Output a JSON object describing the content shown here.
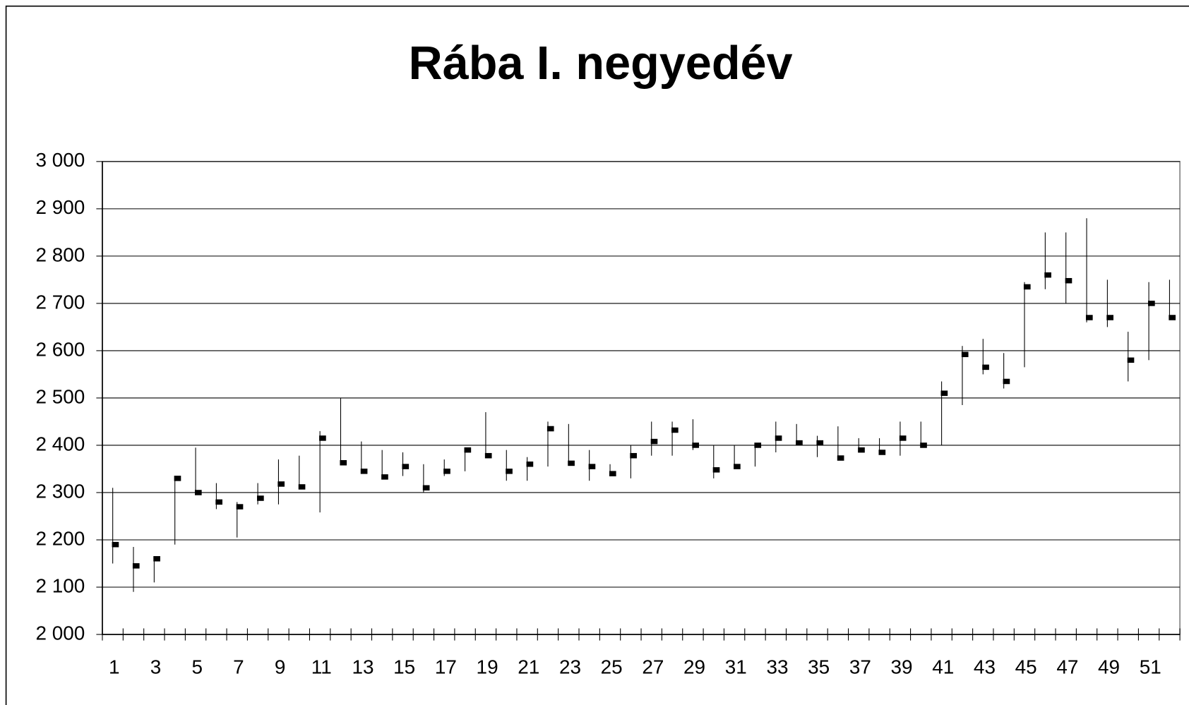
{
  "chart_data": {
    "type": "stock",
    "title": "Rába I. negyedév",
    "categories": [
      "1",
      null,
      "3",
      null,
      "5",
      null,
      "7",
      null,
      "9",
      null,
      "11",
      null,
      "13",
      null,
      "15",
      null,
      "17",
      null,
      "19",
      null,
      "21",
      null,
      "23",
      null,
      "25",
      null,
      "27",
      null,
      "29",
      null,
      "31",
      null,
      "33",
      null,
      "35",
      null,
      "37",
      null,
      "39",
      null,
      "41",
      null,
      "43",
      null,
      "45",
      null,
      "47",
      null,
      "49",
      null,
      "51",
      null
    ],
    "high": [
      2310,
      2185,
      2165,
      2335,
      2395,
      2320,
      2280,
      2320,
      2370,
      2378,
      2430,
      2500,
      2408,
      2390,
      2385,
      2360,
      2370,
      2395,
      2470,
      2390,
      2375,
      2450,
      2445,
      2390,
      2360,
      2400,
      2450,
      2450,
      2455,
      2400,
      2400,
      2405,
      2450,
      2445,
      2420,
      2440,
      2415,
      2415,
      2450,
      2450,
      2535,
      2610,
      2625,
      2595,
      2745,
      2850,
      2850,
      2880,
      2750,
      2640,
      2745,
      2750
    ],
    "low": [
      2150,
      2090,
      2110,
      2190,
      2300,
      2265,
      2205,
      2275,
      2275,
      2310,
      2258,
      2360,
      2340,
      2330,
      2335,
      2300,
      2335,
      2345,
      2375,
      2325,
      2325,
      2355,
      2360,
      2325,
      2335,
      2330,
      2378,
      2378,
      2390,
      2330,
      2350,
      2355,
      2385,
      2400,
      2375,
      2370,
      2385,
      2380,
      2378,
      2395,
      2400,
      2485,
      2550,
      2520,
      2565,
      2730,
      2700,
      2660,
      2650,
      2535,
      2580,
      2665
    ],
    "close": [
      2190,
      2145,
      2160,
      2330,
      2300,
      2280,
      2270,
      2288,
      2318,
      2312,
      2415,
      2363,
      2345,
      2333,
      2355,
      2310,
      2345,
      2390,
      2378,
      2345,
      2360,
      2435,
      2362,
      2355,
      2340,
      2378,
      2408,
      2432,
      2400,
      2348,
      2355,
      2400,
      2415,
      2405,
      2405,
      2373,
      2390,
      2385,
      2415,
      2400,
      2510,
      2592,
      2565,
      2535,
      2735,
      2760,
      2748,
      2670,
      2670,
      2580,
      2700,
      2670
    ],
    "color": "#000000",
    "ylim": [
      2000,
      3000
    ],
    "yticks": [
      {
        "value": 2000,
        "label": "2 000"
      },
      {
        "value": 2100,
        "label": "2 100"
      },
      {
        "value": 2200,
        "label": "2 200"
      },
      {
        "value": 2300,
        "label": "2 300"
      },
      {
        "value": 2400,
        "label": "2 400"
      },
      {
        "value": 2500,
        "label": "2 500"
      },
      {
        "value": 2600,
        "label": "2 600"
      },
      {
        "value": 2700,
        "label": "2 700"
      },
      {
        "value": 2800,
        "label": "2 800"
      },
      {
        "value": 2900,
        "label": "2 900"
      },
      {
        "value": 3000,
        "label": "3 000"
      }
    ],
    "grid": true
  }
}
